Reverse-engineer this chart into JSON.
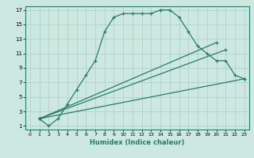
{
  "xlabel": "Humidex (Indice chaleur)",
  "xlim": [
    0,
    23
  ],
  "ylim": [
    1,
    17
  ],
  "xticks": [
    0,
    1,
    2,
    3,
    4,
    5,
    6,
    7,
    8,
    9,
    10,
    11,
    12,
    13,
    14,
    15,
    16,
    17,
    18,
    19,
    20,
    21,
    22,
    23
  ],
  "yticks": [
    1,
    3,
    5,
    7,
    9,
    11,
    13,
    15,
    17
  ],
  "bg_color": "#cce8e0",
  "grid_color": "#aacccc",
  "line_color": "#2a7a6a",
  "line1_x": [
    1,
    2,
    3,
    4,
    5,
    6,
    7,
    8,
    9,
    10,
    11,
    12,
    13,
    14,
    15,
    16,
    17,
    18,
    19,
    20,
    21,
    22,
    23
  ],
  "line1_y": [
    2,
    1,
    2,
    4,
    6,
    8,
    10,
    14,
    16,
    16.5,
    16.5,
    16.5,
    16.5,
    17,
    17,
    16,
    14,
    12,
    11,
    10,
    10,
    8,
    7.5
  ],
  "line2_x": [
    1,
    23
  ],
  "line2_y": [
    2,
    7.5
  ],
  "line3_x": [
    1,
    21
  ],
  "line3_y": [
    2,
    11.5
  ],
  "line4_x": [
    1,
    20
  ],
  "line4_y": [
    2,
    12.5
  ]
}
